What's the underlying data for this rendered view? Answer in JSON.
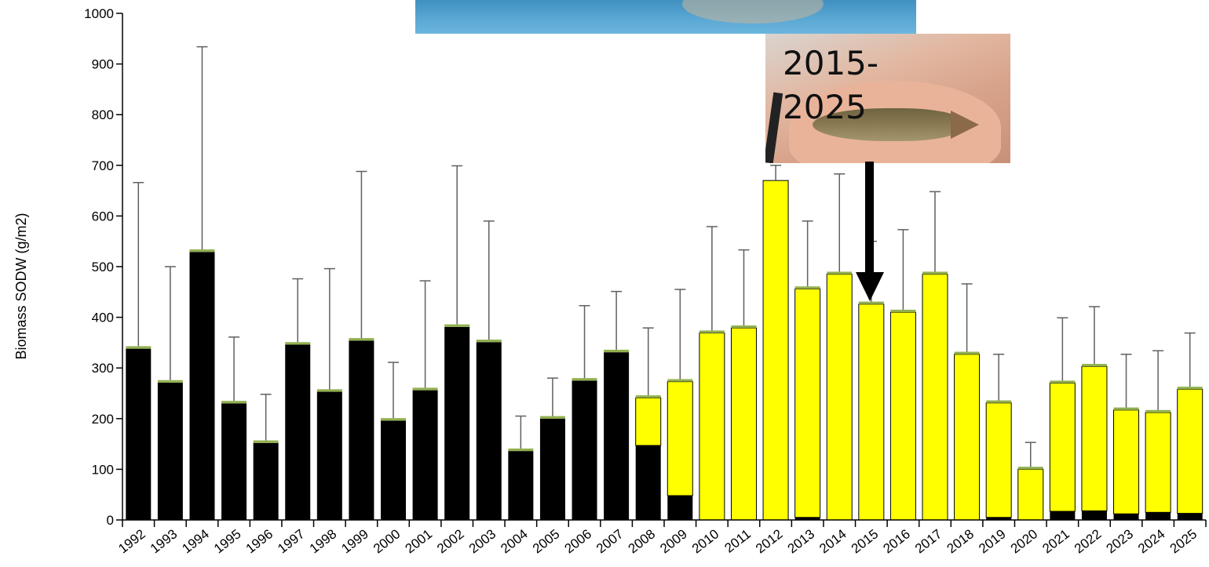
{
  "chart_data": {
    "type": "bar",
    "stacked": true,
    "ylabel": "Biomass SODW (g/m2)",
    "ylim": [
      0,
      1000
    ],
    "yticks": [
      0,
      100,
      200,
      300,
      400,
      500,
      600,
      700,
      800,
      900,
      1000
    ],
    "grid": false,
    "categories": [
      "1992",
      "1993",
      "1994",
      "1995",
      "1996",
      "1997",
      "1998",
      "1999",
      "2000",
      "2001",
      "2002",
      "2003",
      "2004",
      "2005",
      "2006",
      "2007",
      "2008",
      "2009",
      "2010",
      "2011",
      "2012",
      "2013",
      "2014",
      "2015",
      "2016",
      "2017",
      "2018",
      "2019",
      "2020",
      "2021",
      "2022",
      "2023",
      "2024",
      "2025"
    ],
    "series": [
      {
        "color": "#000000",
        "values": [
          338,
          271,
          529,
          230,
          152,
          346,
          253,
          354,
          196,
          256,
          381,
          351,
          136,
          200,
          275,
          331,
          147,
          48,
          0,
          0,
          0,
          5,
          0,
          0,
          0,
          0,
          0,
          5,
          0,
          17,
          18,
          12,
          15,
          13
        ]
      },
      {
        "color": "#ffff00",
        "values": [
          0,
          0,
          0,
          0,
          0,
          0,
          0,
          0,
          0,
          0,
          0,
          0,
          0,
          0,
          0,
          0,
          94,
          225,
          369,
          379,
          670,
          451,
          485,
          426,
          410,
          485,
          327,
          226,
          100,
          253,
          285,
          205,
          197,
          245
        ]
      },
      {
        "color": "#92b050",
        "values": [
          5,
          5,
          5,
          5,
          5,
          5,
          5,
          5,
          5,
          5,
          5,
          5,
          5,
          5,
          5,
          5,
          5,
          5,
          5,
          5,
          0,
          5,
          5,
          5,
          5,
          5,
          5,
          5,
          5,
          5,
          5,
          5,
          5,
          5
        ]
      }
    ],
    "error_bars": [
      666,
      500,
      934,
      361,
      248,
      476,
      496,
      688,
      311,
      472,
      699,
      590,
      205,
      280,
      423,
      451,
      379,
      455,
      579,
      533,
      700,
      590,
      683,
      550,
      573,
      648,
      466,
      327,
      153,
      399,
      421,
      327,
      334,
      369
    ]
  },
  "annotation": {
    "text": "2015-2025",
    "points_to": "2015"
  },
  "images": [
    {
      "name": "photo-top",
      "desc": "photo"
    },
    {
      "name": "photo-fish",
      "desc": "photo"
    }
  ]
}
